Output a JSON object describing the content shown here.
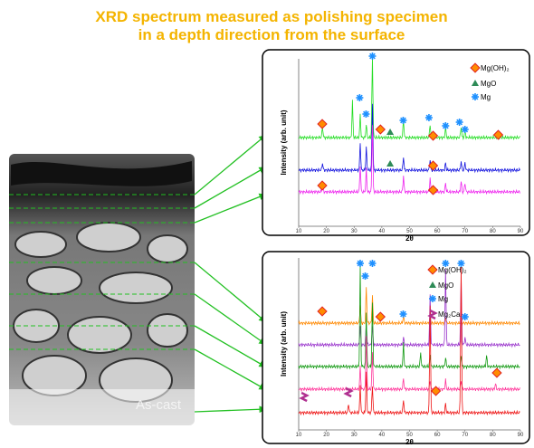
{
  "title": [
    "XRD spectrum measured as polishing specimen",
    "in a depth direction from the surface"
  ],
  "micrograph_label": "As-cast",
  "panels": [
    {
      "y_label": "Intensity (arb. unit)",
      "x_label": "2θ",
      "x_ticks": [
        "10",
        "20",
        "30",
        "40",
        "50",
        "60",
        "70",
        "80",
        "90"
      ],
      "legend": [
        "Mg(OH)₂",
        "MgO",
        "Mg"
      ]
    },
    {
      "y_label": "Intensity (arb. unit)",
      "x_label": "2θ",
      "x_ticks": [
        "10",
        "20",
        "30",
        "40",
        "50",
        "60",
        "70",
        "80",
        "90"
      ],
      "legend": [
        "Mg(OH)₂",
        "MgO",
        "Mg",
        "Mg₂Ca"
      ]
    }
  ]
}
